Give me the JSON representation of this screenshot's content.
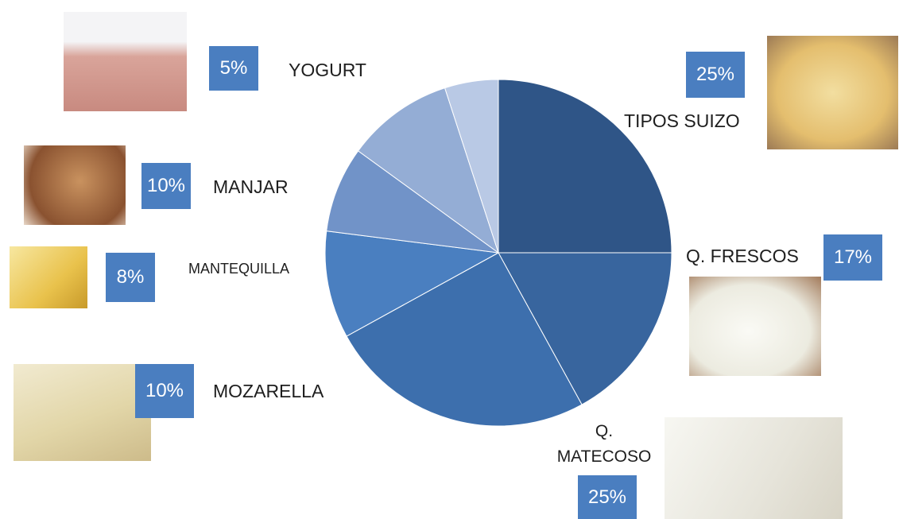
{
  "chart_data": {
    "type": "pie",
    "categories": [
      "TIPOS SUIZO",
      "Q. FRESCOS",
      "Q. MATECOSO",
      "MOZARELLA",
      "MANTEQUILLA",
      "MANJAR",
      "YOGURT"
    ],
    "values": [
      25,
      17,
      25,
      10,
      8,
      10,
      5
    ],
    "value_labels": [
      "25%",
      "17%",
      "25%",
      "10%",
      "8%",
      "10%",
      "5%"
    ],
    "colors": [
      "#2f5587",
      "#38659e",
      "#3d6fad",
      "#4a7fc0",
      "#7193c8",
      "#94add5",
      "#b9c9e5"
    ],
    "label_color": "#4a7ec0"
  }
}
